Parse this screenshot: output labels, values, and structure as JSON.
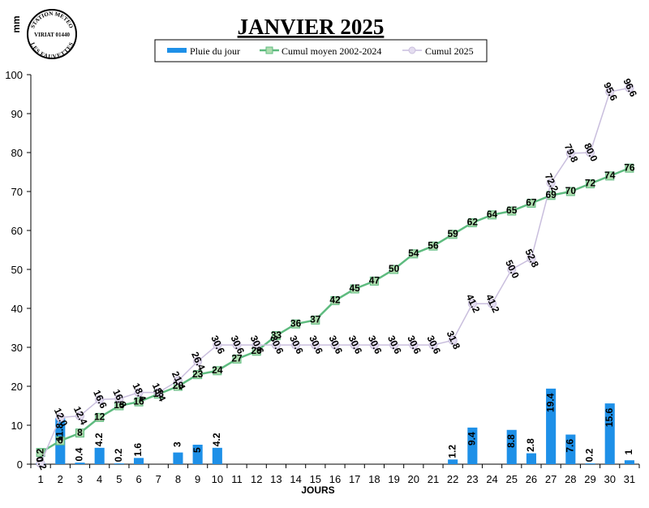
{
  "logo": {
    "top_text": "STATION METEO",
    "middle_text": "VIRIAT 01440",
    "bottom_text": "LES FAUVETTES"
  },
  "chart_data": {
    "type": "bar+line",
    "title": "JANVIER 2025",
    "xlabel": "JOURS",
    "ylabel": "mm",
    "ylim": [
      0,
      100
    ],
    "yticks": [
      0,
      10,
      20,
      30,
      40,
      50,
      60,
      70,
      80,
      90,
      100
    ],
    "categories": [
      "1",
      "2",
      "3",
      "4",
      "5",
      "6",
      "7",
      "8",
      "9",
      "10",
      "11",
      "12",
      "13",
      "14",
      "15",
      "16",
      "17",
      "18",
      "19",
      "20",
      "21",
      "22",
      "23",
      "24",
      "25",
      "26",
      "27",
      "28",
      "29",
      "30",
      "31"
    ],
    "legend_position": "top-center",
    "series": [
      {
        "name": "Pluie du jour",
        "type": "bar",
        "color": "#1E90E8",
        "values": [
          0.2,
          11.8,
          0.4,
          4.2,
          0.2,
          1.6,
          0,
          3,
          5,
          4.2,
          0,
          0,
          0,
          0,
          0,
          0,
          0,
          0,
          0,
          0,
          0,
          1.2,
          9.4,
          0,
          8.8,
          2.8,
          19.4,
          7.6,
          0.2,
          15.6,
          1
        ],
        "labels": [
          "0.2",
          "11.8",
          "0.4",
          "4.2",
          "0.2",
          "1.6",
          "",
          "3",
          "5",
          "4.2",
          "",
          "",
          "",
          "",
          "",
          "",
          "",
          "",
          "",
          "",
          "",
          "1.2",
          "9.4",
          "",
          "8.8",
          "2.8",
          "19.4",
          "7.6",
          "0.2",
          "15.6",
          "1"
        ]
      },
      {
        "name": "Cumul moyen 2002-2024",
        "type": "line",
        "color": "#5EBB7F",
        "fill": "#AEDDAF",
        "values": [
          3,
          6,
          8,
          12,
          15,
          16,
          18,
          20,
          23,
          24,
          27,
          29,
          33,
          36,
          37,
          42,
          45,
          47,
          50,
          54,
          56,
          59,
          62,
          64,
          65,
          67,
          69,
          70,
          72,
          74,
          76
        ],
        "labels": [
          "",
          "6",
          "8",
          "12",
          "15",
          "16",
          "18",
          "20",
          "23",
          "24",
          "27",
          "29",
          "33",
          "36",
          "37",
          "42",
          "45",
          "47",
          "50",
          "54",
          "56",
          "59",
          "62",
          "64",
          "65",
          "67",
          "69",
          "70",
          "72",
          "74",
          "76"
        ]
      },
      {
        "name": "Cumul 2025",
        "type": "line",
        "color": "#C9BEDD",
        "fill": "#E4DDF0",
        "values": [
          0.2,
          12.0,
          12.4,
          16.6,
          16.8,
          18.4,
          18.4,
          21.4,
          26.4,
          30.6,
          30.6,
          30.6,
          30.6,
          30.6,
          30.6,
          30.6,
          30.6,
          30.6,
          30.6,
          30.6,
          30.6,
          31.8,
          41.2,
          41.2,
          50.0,
          52.8,
          72.2,
          79.8,
          80.0,
          95.6,
          96.6
        ],
        "labels": [
          "0.2",
          "12.0",
          "12.4",
          "16.6",
          "16.8",
          "18.4",
          "18.4",
          "21.4",
          "26.4",
          "30.6",
          "30.6",
          "30.6",
          "30.6",
          "30.6",
          "30.6",
          "30.6",
          "30.6",
          "30.6",
          "30.6",
          "30.6",
          "30.6",
          "31.8",
          "41.2",
          "41.2",
          "50.0",
          "52.8",
          "72.2",
          "79.8",
          "80.0",
          "95.6",
          "96.6"
        ]
      }
    ]
  }
}
